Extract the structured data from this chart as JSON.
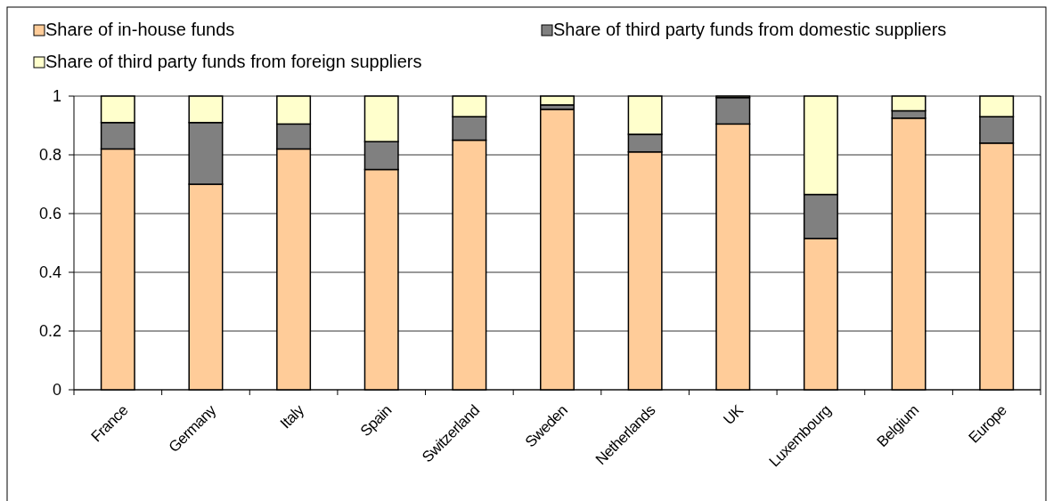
{
  "chart_data": {
    "type": "bar",
    "stacked": true,
    "categories": [
      "France",
      "Germany",
      "Italy",
      "Spain",
      "Switzerland",
      "Sweden",
      "Netherlands",
      "UK",
      "Luxembourg",
      "Belgium",
      "Europe"
    ],
    "series": [
      {
        "name": "Share of in-house funds",
        "color": "#ffcc99",
        "values": [
          0.82,
          0.7,
          0.82,
          0.75,
          0.85,
          0.955,
          0.81,
          0.905,
          0.515,
          0.925,
          0.84
        ]
      },
      {
        "name": "Share of third party funds from domestic suppliers",
        "color": "#808080",
        "values": [
          0.09,
          0.21,
          0.085,
          0.095,
          0.08,
          0.015,
          0.06,
          0.09,
          0.15,
          0.025,
          0.09
        ]
      },
      {
        "name": "Share of third party funds from foreign suppliers",
        "color": "#ffffcc",
        "values": [
          0.09,
          0.09,
          0.095,
          0.155,
          0.07,
          0.03,
          0.13,
          0.005,
          0.335,
          0.05,
          0.07
        ]
      }
    ],
    "ylim": [
      0,
      1
    ],
    "yticks": [
      0,
      0.2,
      0.4,
      0.6,
      0.8,
      1
    ],
    "grid": "y",
    "legend": "top"
  }
}
